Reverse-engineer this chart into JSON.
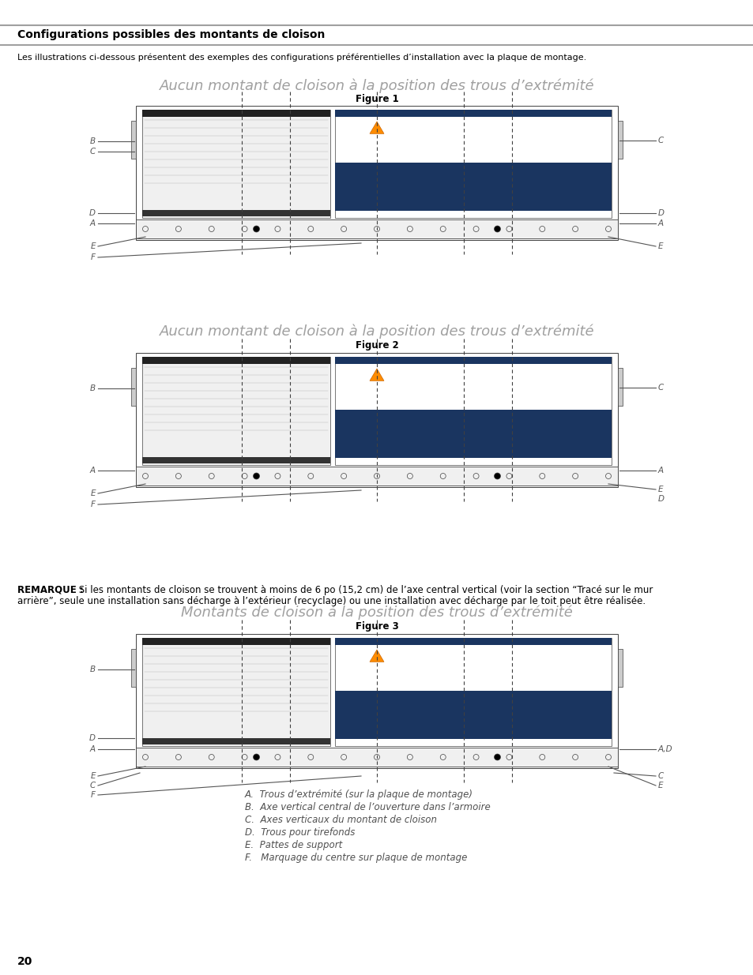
{
  "page_num": "20",
  "bg_color": "#ffffff",
  "title_text": "Configurations possibles des montants de cloison",
  "subtitle_text": "Les illustrations ci-dessous présentent des exemples des configurations préférentielles d’installation avec la plaque de montage.",
  "fig1_title": "Aucun montant de cloison à la position des trous d’extrémité",
  "fig1_label": "Figure 1",
  "fig2_title": "Aucun montant de cloison à la position des trous d’extrémité",
  "fig2_label": "Figure 2",
  "fig3_title": "Montants de cloison à la position des trous d’extrémité",
  "fig3_label": "Figure 3",
  "note_bold": "REMARQUE :",
  "note_rest": " Si les montants de cloison se trouvent à moins de 6 po (15,2 cm) de l’axe central vertical (voir la section “Tracé sur le mur",
  "note_line2": "arrière”, seule une installation sans décharge à l’extérieur (recyclage) ou une installation avec décharge par le toit peut être réalisée.",
  "legend_items": [
    "A.  Trous d’extrémité (sur la plaque de montage)",
    "B.  Axe vertical central de l’ouverture dans l’armoire",
    "C.  Axes verticaux du montant de cloison",
    "D.  Trous pour tirefonds",
    "E.  Pattes de support",
    "F.   Marquage du centre sur plaque de montage"
  ],
  "header_line_color": "#a0a0a0",
  "diagram_line_color": "#404040",
  "label_color": "#555555",
  "figure_title_color": "#a0a0a0",
  "legend_color": "#505050"
}
